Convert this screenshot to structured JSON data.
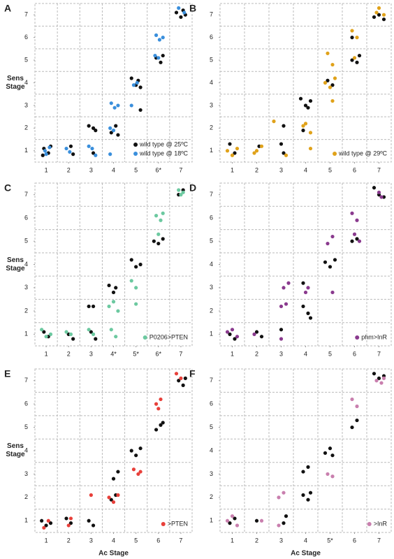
{
  "chart_data": [
    {
      "type": "scatter",
      "label": "A",
      "ylabel": "Sens Stage",
      "xlim": [
        0.5,
        7.5
      ],
      "ylim": [
        0.5,
        7.5
      ],
      "grid": true,
      "xticks": [
        1,
        2,
        3,
        4,
        5,
        {
          "value": 6,
          "label": "6*"
        },
        7
      ],
      "yticks": [
        1,
        2,
        3,
        4,
        5,
        6,
        7
      ],
      "series": [
        {
          "name": "wild type @ 25ºC",
          "color": "#111111",
          "x": [
            0.9,
            1.1,
            1.2,
            0.85,
            2.1,
            2.2,
            2.9,
            3.1,
            3.2,
            3.1,
            3.9,
            4.1,
            4.2,
            4.8,
            5.0,
            5.1,
            5.2,
            5.2,
            5.9,
            6.1,
            6.2,
            6.8,
            7.0,
            7.1,
            7.2
          ],
          "values": [
            1.1,
            0.9,
            1.2,
            0.8,
            1.2,
            0.85,
            2.1,
            2.0,
            1.9,
            0.9,
            1.8,
            2.1,
            1.7,
            4.2,
            3.9,
            4.1,
            3.8,
            2.8,
            5.1,
            4.9,
            5.2,
            7.1,
            6.9,
            7.2,
            7.0
          ]
        },
        {
          "name": "wild type @ 18ºC",
          "color": "#3a8fdc",
          "x": [
            0.95,
            1.15,
            1.0,
            1.9,
            2.05,
            2.9,
            3.05,
            3.2,
            3.85,
            4.0,
            3.9,
            4.05,
            4.2,
            3.85,
            4.9,
            5.05,
            4.8,
            5.85,
            6.0,
            5.9,
            6.05,
            6.2,
            6.9,
            7.15
          ],
          "values": [
            1.0,
            1.15,
            0.85,
            1.1,
            0.95,
            1.2,
            1.1,
            0.8,
            2.0,
            1.9,
            3.1,
            2.9,
            3.0,
            0.85,
            3.9,
            4.0,
            3.0,
            5.2,
            5.1,
            6.1,
            5.9,
            6.0,
            7.3,
            7.1
          ]
        }
      ]
    },
    {
      "type": "scatter",
      "label": "B",
      "xlim": [
        0.5,
        7.5
      ],
      "ylim": [
        0.5,
        7.5
      ],
      "grid": true,
      "xticks": [
        1,
        2,
        3,
        4,
        5,
        6,
        7
      ],
      "yticks": [
        1,
        2,
        3,
        4,
        5,
        6,
        7
      ],
      "series": [
        {
          "color": "#111111",
          "x": [
            0.9,
            1.1,
            2.1,
            3.0,
            3.1,
            3.1,
            3.8,
            4.0,
            4.2,
            4.1,
            3.9,
            4.9,
            5.1,
            5.9,
            6.1,
            6.2,
            5.9,
            6.8,
            7.0,
            7.2
          ],
          "values": [
            1.3,
            0.9,
            1.2,
            1.3,
            0.9,
            2.1,
            3.3,
            3.0,
            3.2,
            2.9,
            1.9,
            4.1,
            3.9,
            5.0,
            4.9,
            5.2,
            6.0,
            6.9,
            7.0,
            6.8
          ]
        },
        {
          "name": "wild type @ 29ºC",
          "color": "#e0a21a",
          "x": [
            0.8,
            1.0,
            1.2,
            1.9,
            2.0,
            2.2,
            2.7,
            3.2,
            3.9,
            4.0,
            4.2,
            4.2,
            4.9,
            5.1,
            4.8,
            5.0,
            5.2,
            5.1,
            5.9,
            6.1,
            6.0,
            6.9,
            7.0,
            7.2
          ],
          "values": [
            1.0,
            0.8,
            1.1,
            0.9,
            1.0,
            1.2,
            2.3,
            0.8,
            2.1,
            2.2,
            1.8,
            1.1,
            5.3,
            4.8,
            4.0,
            3.8,
            4.2,
            3.2,
            6.3,
            6.0,
            5.1,
            7.1,
            7.3,
            7.0
          ]
        }
      ]
    },
    {
      "type": "scatter",
      "label": "C",
      "ylabel": "Sens Stage",
      "xlim": [
        0.5,
        7.5
      ],
      "ylim": [
        0.5,
        7.5
      ],
      "grid": true,
      "xticks": [
        1,
        2,
        3,
        {
          "value": 4,
          "label": "4*"
        },
        {
          "value": 5,
          "label": "5*"
        },
        {
          "value": 6,
          "label": "6*"
        },
        7
      ],
      "yticks": [
        1,
        2,
        3,
        4,
        5,
        6,
        7
      ],
      "series": [
        {
          "color": "#111111",
          "x": [
            0.9,
            1.1,
            2.0,
            2.2,
            2.9,
            3.1,
            3.0,
            3.2,
            3.8,
            4.0,
            4.1,
            4.8,
            5.0,
            5.2,
            5.8,
            6.0,
            6.2,
            6.9,
            7.1
          ],
          "values": [
            1.1,
            0.9,
            1.0,
            0.8,
            2.2,
            2.2,
            1.1,
            0.8,
            3.1,
            2.8,
            3.0,
            4.2,
            3.9,
            4.0,
            5.0,
            4.9,
            5.1,
            7.0,
            7.2
          ]
        },
        {
          "name": "P0206>PTEN",
          "color": "#6cc9a0",
          "x": [
            0.8,
            1.0,
            1.2,
            1.9,
            2.1,
            2.9,
            3.1,
            3.8,
            4.0,
            4.2,
            3.9,
            4.1,
            4.8,
            5.0,
            5.0,
            5.9,
            6.1,
            6.2,
            6.0,
            6.9,
            7.0,
            7.1
          ],
          "values": [
            1.2,
            0.9,
            1.0,
            1.1,
            1.0,
            1.2,
            1.0,
            2.2,
            2.4,
            2.0,
            1.2,
            0.9,
            3.3,
            3.0,
            2.3,
            6.1,
            5.9,
            6.2,
            5.3,
            7.2,
            7.0,
            7.1
          ]
        }
      ]
    },
    {
      "type": "scatter",
      "label": "D",
      "xlim": [
        0.5,
        7.5
      ],
      "ylim": [
        0.5,
        7.5
      ],
      "grid": true,
      "xticks": [
        1,
        2,
        3,
        4,
        5,
        6,
        7
      ],
      "yticks": [
        1,
        2,
        3,
        4,
        5,
        6,
        7
      ],
      "series": [
        {
          "color": "#111111",
          "x": [
            0.9,
            1.1,
            2.0,
            2.2,
            3.0,
            3.9,
            4.1,
            4.2,
            3.9,
            4.8,
            5.0,
            5.2,
            5.9,
            6.1,
            6.8,
            7.0,
            7.2
          ],
          "values": [
            1.0,
            0.8,
            1.1,
            0.9,
            1.2,
            2.2,
            1.9,
            1.7,
            3.2,
            4.1,
            3.9,
            4.2,
            5.0,
            5.1,
            7.3,
            7.0,
            6.9
          ]
        },
        {
          "name": "phm>InR",
          "color": "#8a3a8e",
          "x": [
            0.8,
            1.0,
            1.2,
            1.9,
            3.0,
            3.2,
            3.1,
            3.3,
            3.0,
            4.0,
            4.1,
            4.9,
            5.1,
            5.1,
            5.9,
            6.1,
            6.0,
            6.2,
            7.0,
            7.1
          ],
          "values": [
            1.1,
            1.2,
            0.9,
            1.0,
            2.2,
            2.3,
            3.0,
            3.2,
            0.8,
            2.8,
            3.0,
            4.9,
            5.2,
            2.8,
            6.2,
            5.9,
            5.3,
            5.0,
            7.1,
            6.9
          ]
        }
      ]
    },
    {
      "type": "scatter",
      "label": "E",
      "ylabel": "Sens Stage",
      "xlabel": "Ac Stage",
      "xlim": [
        0.5,
        7.5
      ],
      "ylim": [
        0.5,
        7.5
      ],
      "grid": true,
      "xticks": [
        1,
        2,
        3,
        4,
        5,
        6,
        7
      ],
      "yticks": [
        1,
        2,
        3,
        4,
        5,
        6,
        7
      ],
      "series": [
        {
          "color": "#111111",
          "x": [
            0.8,
            1.0,
            1.2,
            1.9,
            2.1,
            2.9,
            3.1,
            3.9,
            4.1,
            4.0,
            4.2,
            4.8,
            5.0,
            5.2,
            5.9,
            6.1,
            6.2,
            6.9,
            7.1,
            7.2
          ],
          "values": [
            1.0,
            0.8,
            0.9,
            1.1,
            0.9,
            1.0,
            0.8,
            1.9,
            2.1,
            2.8,
            3.1,
            4.0,
            3.8,
            4.1,
            4.9,
            5.1,
            5.2,
            7.0,
            6.8,
            7.1
          ]
        },
        {
          "name": ">PTEN",
          "color": "#e8403a",
          "x": [
            0.9,
            1.1,
            2.0,
            2.1,
            3.0,
            3.8,
            4.0,
            4.2,
            4.9,
            5.1,
            5.2,
            5.9,
            6.1,
            6.0,
            6.8,
            7.0
          ],
          "values": [
            0.7,
            1.0,
            0.8,
            1.1,
            2.1,
            2.0,
            1.8,
            2.1,
            3.2,
            3.0,
            3.1,
            6.0,
            6.2,
            5.8,
            7.3,
            7.1
          ]
        }
      ]
    },
    {
      "type": "scatter",
      "label": "F",
      "xlabel": "Ac Stage",
      "xlim": [
        0.5,
        7.5
      ],
      "ylim": [
        0.5,
        7.5
      ],
      "grid": true,
      "xticks": [
        1,
        2,
        3,
        4,
        {
          "value": 5,
          "label": "5*"
        },
        6,
        7
      ],
      "yticks": [
        1,
        2,
        3,
        4,
        5,
        6,
        7
      ],
      "series": [
        {
          "color": "#111111",
          "x": [
            0.9,
            1.1,
            2.0,
            3.1,
            3.2,
            3.9,
            4.1,
            4.2,
            3.9,
            4.1,
            4.8,
            5.0,
            5.1,
            5.9,
            6.1,
            6.8,
            7.0,
            7.2
          ],
          "values": [
            0.9,
            1.1,
            1.0,
            0.9,
            1.2,
            2.1,
            1.9,
            2.2,
            3.1,
            3.3,
            3.9,
            4.1,
            3.8,
            5.0,
            5.3,
            7.3,
            7.1,
            7.2
          ]
        },
        {
          "name": ">InR",
          "color": "#c97fae",
          "x": [
            0.8,
            1.0,
            1.2,
            2.2,
            2.9,
            3.1,
            2.9,
            4.9,
            5.1,
            5.9,
            6.1,
            6.9,
            7.1,
            7.2
          ],
          "values": [
            1.0,
            1.2,
            0.8,
            1.0,
            2.0,
            2.2,
            0.8,
            3.0,
            2.9,
            6.2,
            5.9,
            7.0,
            6.9,
            7.1
          ]
        }
      ]
    }
  ]
}
